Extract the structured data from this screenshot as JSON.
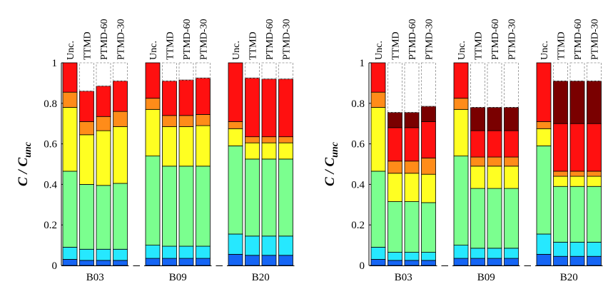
{
  "colors": [
    "#1565F5",
    "#26E8FF",
    "#7BFF8F",
    "#FFFF22",
    "#FF8C19",
    "#FF1010",
    "#7A0000"
  ],
  "chart_data": [
    {
      "type": "bar",
      "stacked": true,
      "ylabel_main": "C / C",
      "ylabel_sub": "unc",
      "ylim": [
        0,
        1
      ],
      "yticks": [
        "0",
        "0.2",
        "0.4",
        "0.6",
        "0.8",
        "1"
      ],
      "bar_labels": [
        "Unc.",
        "TTMD",
        "PTMD-60",
        "PTMD-30"
      ],
      "groups": [
        {
          "name": "B03",
          "bars": [
            [
              0.03,
              0.06,
              0.375,
              0.315,
              0.075,
              0.145
            ],
            [
              0.025,
              0.055,
              0.32,
              0.245,
              0.065,
              0.15
            ],
            [
              0.025,
              0.055,
              0.315,
              0.27,
              0.07,
              0.15
            ],
            [
              0.025,
              0.055,
              0.325,
              0.28,
              0.075,
              0.15
            ]
          ]
        },
        {
          "name": "B09",
          "bars": [
            [
              0.035,
              0.065,
              0.44,
              0.23,
              0.055,
              0.175
            ],
            [
              0.035,
              0.06,
              0.395,
              0.195,
              0.055,
              0.17
            ],
            [
              0.035,
              0.06,
              0.395,
              0.195,
              0.055,
              0.175
            ],
            [
              0.035,
              0.06,
              0.395,
              0.2,
              0.055,
              0.18
            ]
          ]
        },
        {
          "name": "B20",
          "bars": [
            [
              0.055,
              0.1,
              0.435,
              0.085,
              0.035,
              0.29
            ],
            [
              0.05,
              0.095,
              0.38,
              0.08,
              0.03,
              0.29
            ],
            [
              0.05,
              0.095,
              0.38,
              0.08,
              0.03,
              0.285
            ],
            [
              0.05,
              0.095,
              0.38,
              0.08,
              0.03,
              0.285
            ]
          ]
        }
      ]
    },
    {
      "type": "bar",
      "stacked": true,
      "ylabel_main": "C / C",
      "ylabel_sub": "unc",
      "ylim": [
        0,
        1
      ],
      "yticks": [
        "0",
        "0.2",
        "0.4",
        "0.6",
        "0.8",
        "1"
      ],
      "bar_labels": [
        "Unc.",
        "TTMD",
        "PTMD-60",
        "PTMD-30"
      ],
      "groups": [
        {
          "name": "B03",
          "bars": [
            [
              0.03,
              0.06,
              0.375,
              0.315,
              0.075,
              0.145,
              0
            ],
            [
              0.025,
              0.04,
              0.25,
              0.14,
              0.06,
              0.165,
              0.075
            ],
            [
              0.025,
              0.04,
              0.25,
              0.14,
              0.06,
              0.165,
              0.075
            ],
            [
              0.025,
              0.04,
              0.245,
              0.14,
              0.08,
              0.18,
              0.075
            ]
          ]
        },
        {
          "name": "B09",
          "bars": [
            [
              0.035,
              0.065,
              0.44,
              0.23,
              0.055,
              0.175,
              0
            ],
            [
              0.035,
              0.05,
              0.295,
              0.11,
              0.045,
              0.13,
              0.115
            ],
            [
              0.035,
              0.05,
              0.295,
              0.11,
              0.045,
              0.13,
              0.115
            ],
            [
              0.035,
              0.05,
              0.295,
              0.11,
              0.045,
              0.13,
              0.115
            ]
          ]
        },
        {
          "name": "B20",
          "bars": [
            [
              0.055,
              0.1,
              0.435,
              0.085,
              0.035,
              0.29,
              0
            ],
            [
              0.045,
              0.07,
              0.275,
              0.05,
              0.025,
              0.235,
              0.21
            ],
            [
              0.045,
              0.07,
              0.275,
              0.05,
              0.025,
              0.235,
              0.21
            ],
            [
              0.045,
              0.07,
              0.275,
              0.05,
              0.025,
              0.235,
              0.21
            ]
          ]
        }
      ]
    }
  ]
}
